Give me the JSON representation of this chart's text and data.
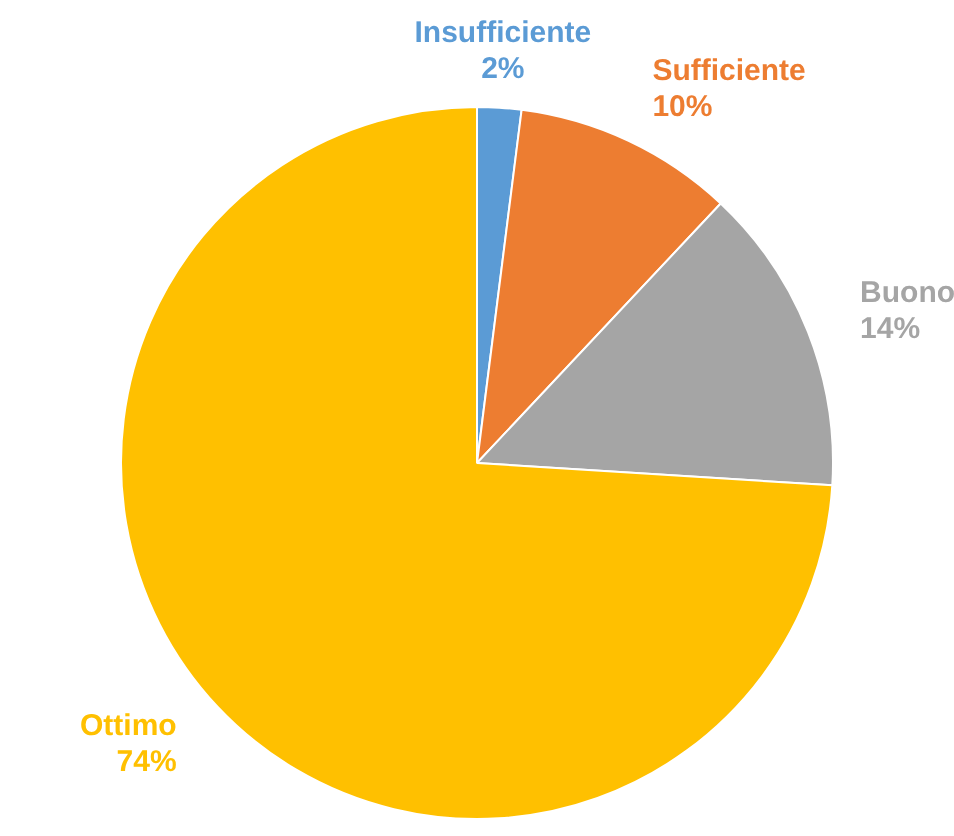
{
  "chart_data": {
    "type": "pie",
    "categories": [
      "Insufficiente",
      "Sufficiente",
      "Buono",
      "Ottimo"
    ],
    "values": [
      2,
      10,
      14,
      74
    ],
    "colors": [
      "#5b9bd5",
      "#ed7d31",
      "#a5a5a5",
      "#ffc000"
    ],
    "value_labels": [
      "2%",
      "10%",
      "14%",
      "74%"
    ]
  }
}
